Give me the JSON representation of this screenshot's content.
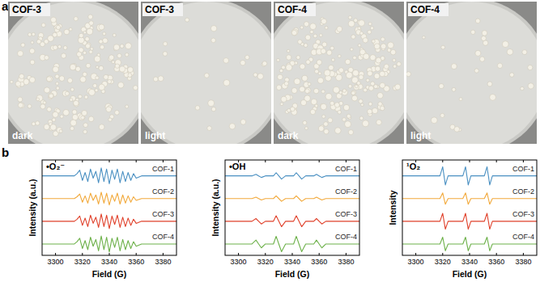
{
  "panels": {
    "a": "a",
    "b": "b"
  },
  "photos": [
    {
      "title": "COF-3",
      "condition": "dark",
      "colonies": 190
    },
    {
      "title": "COF-3",
      "condition": "light",
      "colonies": 22
    },
    {
      "title": "COF-4",
      "condition": "dark",
      "colonies": 210
    },
    {
      "title": "COF-4",
      "condition": "light",
      "colonies": 30
    }
  ],
  "chart_data": [
    {
      "type": "line",
      "title": "•O₂⁻",
      "xlabel": "Field (G)",
      "ylabel": "Intensity (a.u.)",
      "tick_labels": "x",
      "xlim": [
        3290,
        3390
      ],
      "xticks": [
        3300,
        3320,
        3340,
        3360,
        3380
      ],
      "ylim": [
        -0.1,
        4.1
      ],
      "x": [
        3290,
        3300,
        3310,
        3314,
        3316,
        3318,
        3320,
        3322,
        3324,
        3326,
        3328,
        3330,
        3332,
        3334,
        3336,
        3338,
        3340,
        3342,
        3344,
        3346,
        3348,
        3350,
        3352,
        3354,
        3356,
        3358,
        3360,
        3364,
        3370,
        3380,
        3390
      ],
      "series": [
        {
          "name": "COF-1",
          "color": "#4a90c2",
          "values": [
            3.4,
            3.4,
            3.4,
            3.4,
            3.5,
            3.65,
            3.2,
            3.55,
            3.15,
            3.7,
            3.3,
            3.6,
            3.1,
            3.75,
            3.15,
            3.7,
            3.05,
            3.65,
            3.25,
            3.7,
            3.1,
            3.6,
            3.15,
            3.55,
            3.2,
            3.5,
            3.3,
            3.4,
            3.4,
            3.4,
            3.4
          ]
        },
        {
          "name": "COF-2",
          "color": "#f2a93b",
          "values": [
            2.4,
            2.4,
            2.4,
            2.4,
            2.48,
            2.6,
            2.24,
            2.52,
            2.2,
            2.64,
            2.32,
            2.56,
            2.16,
            2.68,
            2.2,
            2.64,
            2.12,
            2.56,
            2.28,
            2.64,
            2.16,
            2.56,
            2.2,
            2.52,
            2.24,
            2.48,
            2.32,
            2.4,
            2.4,
            2.4,
            2.4
          ]
        },
        {
          "name": "COF-3",
          "color": "#e0402a",
          "values": [
            1.4,
            1.4,
            1.4,
            1.4,
            1.49,
            1.63,
            1.22,
            1.54,
            1.17,
            1.67,
            1.31,
            1.58,
            1.13,
            1.72,
            1.17,
            1.67,
            1.08,
            1.63,
            1.26,
            1.67,
            1.13,
            1.58,
            1.17,
            1.54,
            1.22,
            1.49,
            1.31,
            1.4,
            1.4,
            1.4,
            1.4
          ]
        },
        {
          "name": "COF-4",
          "color": "#6db14a",
          "values": [
            0.4,
            0.4,
            0.4,
            0.4,
            0.5,
            0.65,
            0.2,
            0.55,
            0.15,
            0.7,
            0.3,
            0.6,
            0.1,
            0.75,
            0.15,
            0.7,
            0.05,
            0.65,
            0.25,
            0.7,
            0.1,
            0.6,
            0.15,
            0.55,
            0.2,
            0.5,
            0.3,
            0.4,
            0.4,
            0.4,
            0.4
          ]
        }
      ]
    },
    {
      "type": "line",
      "title": "•OH",
      "xlabel": "Field (G)",
      "ylabel": "Intensity (a.u.)",
      "tick_labels": "x",
      "xlim": [
        3290,
        3390
      ],
      "xticks": [
        3300,
        3320,
        3340,
        3360,
        3380
      ],
      "ylim": [
        -0.1,
        4.1
      ],
      "x": [
        3290,
        3300,
        3310,
        3313,
        3315,
        3317,
        3320,
        3326,
        3328,
        3330,
        3332,
        3335,
        3341,
        3343,
        3345,
        3347,
        3350,
        3356,
        3358,
        3360,
        3362,
        3365,
        3370,
        3380,
        3390
      ],
      "series": [
        {
          "name": "COF-1",
          "color": "#4a90c2",
          "values": [
            3.4,
            3.4,
            3.4,
            3.47,
            3.4,
            3.33,
            3.4,
            3.4,
            3.54,
            3.4,
            3.26,
            3.4,
            3.4,
            3.54,
            3.4,
            3.26,
            3.4,
            3.4,
            3.47,
            3.4,
            3.33,
            3.4,
            3.4,
            3.4,
            3.4
          ]
        },
        {
          "name": "COF-2",
          "color": "#f2a93b",
          "values": [
            2.4,
            2.4,
            2.4,
            2.46,
            2.4,
            2.34,
            2.4,
            2.4,
            2.52,
            2.4,
            2.28,
            2.4,
            2.4,
            2.52,
            2.4,
            2.28,
            2.4,
            2.4,
            2.46,
            2.4,
            2.34,
            2.4,
            2.4,
            2.4,
            2.4
          ]
        },
        {
          "name": "COF-3",
          "color": "#e0402a",
          "values": [
            1.4,
            1.4,
            1.4,
            1.52,
            1.4,
            1.28,
            1.4,
            1.4,
            1.64,
            1.4,
            1.16,
            1.4,
            1.4,
            1.64,
            1.4,
            1.16,
            1.4,
            1.4,
            1.52,
            1.4,
            1.28,
            1.4,
            1.4,
            1.4,
            1.4
          ]
        },
        {
          "name": "COF-4",
          "color": "#6db14a",
          "values": [
            0.4,
            0.4,
            0.4,
            0.57,
            0.4,
            0.23,
            0.4,
            0.4,
            0.74,
            0.4,
            0.06,
            0.4,
            0.4,
            0.74,
            0.4,
            0.06,
            0.4,
            0.4,
            0.57,
            0.4,
            0.23,
            0.4,
            0.4,
            0.4,
            0.4
          ]
        }
      ]
    },
    {
      "type": "line",
      "title": "¹O₂",
      "xlabel": "Field (G)",
      "ylabel": "Intensity",
      "tick_labels": "x",
      "xlim": [
        3290,
        3390
      ],
      "xticks": [
        3300,
        3320,
        3340,
        3360,
        3380
      ],
      "ylim": [
        -0.1,
        4.1
      ],
      "x": [
        3290,
        3300,
        3310,
        3318,
        3320,
        3321,
        3322,
        3324,
        3330,
        3335,
        3337,
        3338,
        3339,
        3341,
        3346,
        3351,
        3353,
        3354,
        3355,
        3357,
        3365,
        3375,
        3390
      ],
      "series": [
        {
          "name": "COF-1",
          "color": "#4a90c2",
          "values": [
            3.4,
            3.4,
            3.4,
            3.4,
            3.8,
            3.4,
            3.0,
            3.4,
            3.4,
            3.4,
            3.8,
            3.4,
            3.0,
            3.4,
            3.4,
            3.4,
            3.8,
            3.4,
            3.0,
            3.4,
            3.4,
            3.4,
            3.4
          ]
        },
        {
          "name": "COF-2",
          "color": "#f2a93b",
          "values": [
            2.4,
            2.4,
            2.4,
            2.4,
            2.65,
            2.4,
            2.15,
            2.4,
            2.4,
            2.4,
            2.65,
            2.4,
            2.15,
            2.4,
            2.4,
            2.4,
            2.65,
            2.4,
            2.15,
            2.4,
            2.4,
            2.4,
            2.4
          ]
        },
        {
          "name": "COF-3",
          "color": "#e0402a",
          "values": [
            1.4,
            1.4,
            1.4,
            1.4,
            1.75,
            1.4,
            1.05,
            1.4,
            1.4,
            1.4,
            1.75,
            1.4,
            1.05,
            1.4,
            1.4,
            1.4,
            1.75,
            1.4,
            1.05,
            1.4,
            1.4,
            1.4,
            1.4
          ]
        },
        {
          "name": "COF-4",
          "color": "#6db14a",
          "values": [
            0.4,
            0.4,
            0.4,
            0.4,
            0.7,
            0.4,
            0.1,
            0.4,
            0.4,
            0.4,
            0.7,
            0.4,
            0.1,
            0.4,
            0.4,
            0.4,
            0.7,
            0.4,
            0.1,
            0.4,
            0.4,
            0.4,
            0.4
          ]
        }
      ]
    }
  ]
}
